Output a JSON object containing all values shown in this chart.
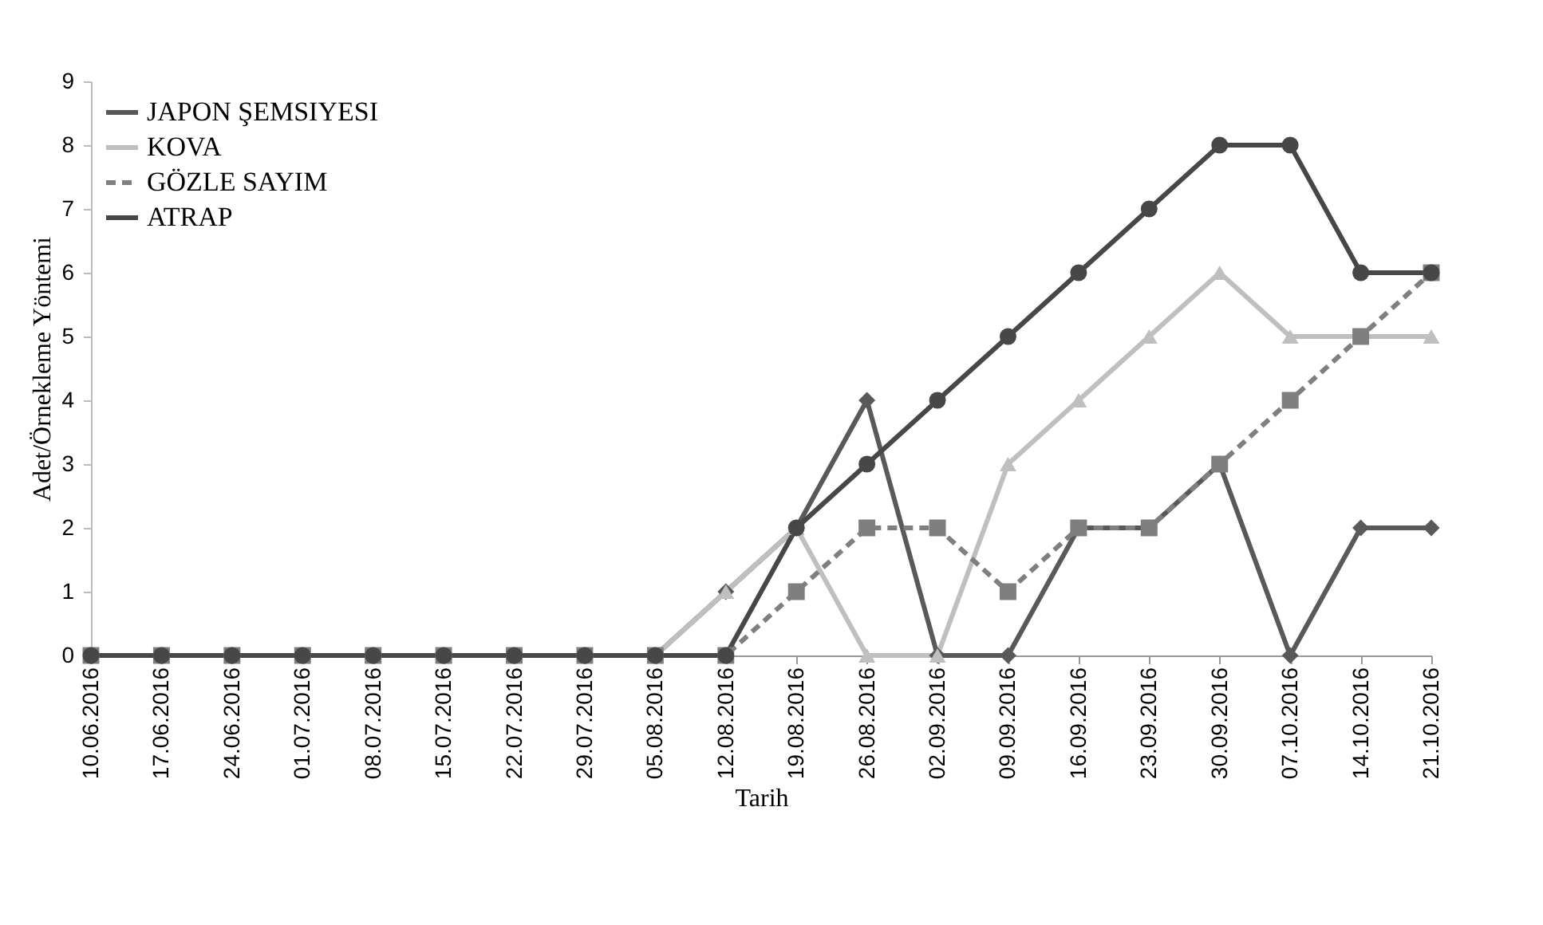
{
  "chart_data": {
    "type": "line",
    "xlabel": "Tarih",
    "ylabel": "Adet/Örnekleme Yöntemi",
    "categories": [
      "10.06.2016",
      "17.06.2016",
      "24.06.2016",
      "01.07.2016",
      "08.07.2016",
      "15.07.2016",
      "22.07.2016",
      "29.07.2016",
      "05.08.2016",
      "12.08.2016",
      "19.08.2016",
      "26.08.2016",
      "02.09.2016",
      "09.09.2016",
      "16.09.2016",
      "23.09.2016",
      "30.09.2016",
      "07.10.2016",
      "14.10.2016",
      "21.10.2016"
    ],
    "series": [
      {
        "name": "JAPON ŞEMSIYESI",
        "color": "#595959",
        "marker": "diamond",
        "line_style": "solid",
        "values": [
          0,
          0,
          0,
          0,
          0,
          0,
          0,
          0,
          0,
          1,
          2,
          4,
          0,
          0,
          2,
          2,
          3,
          0,
          2,
          2
        ]
      },
      {
        "name": "KOVA",
        "color": "#bfbfbf",
        "marker": "triangle",
        "line_style": "solid",
        "values": [
          0,
          0,
          0,
          0,
          0,
          0,
          0,
          0,
          0,
          1,
          2,
          0,
          0,
          3,
          4,
          5,
          6,
          5,
          5,
          5
        ]
      },
      {
        "name": "GÖZLE SAYIM",
        "color": "#7f7f7f",
        "marker": "square",
        "line_style": "dashed",
        "values": [
          0,
          0,
          0,
          0,
          0,
          0,
          0,
          0,
          0,
          0,
          1,
          2,
          2,
          1,
          2,
          2,
          3,
          4,
          5,
          6
        ]
      },
      {
        "name": "ATRAP",
        "color": "#474747",
        "marker": "circle",
        "line_style": "solid",
        "values": [
          0,
          0,
          0,
          0,
          0,
          0,
          0,
          0,
          0,
          0,
          2,
          3,
          4,
          5,
          6,
          7,
          8,
          8,
          6,
          6
        ]
      }
    ],
    "ylim": [
      0,
      9
    ],
    "yticks": [
      0,
      1,
      2,
      3,
      4,
      5,
      6,
      7,
      8,
      9
    ],
    "grid": false,
    "legend": "top left"
  }
}
